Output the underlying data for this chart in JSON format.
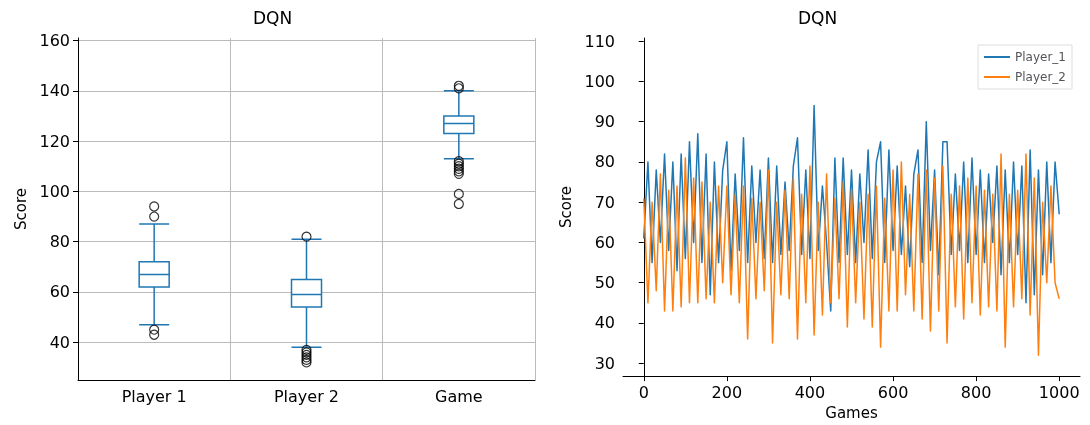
{
  "chart_data": [
    {
      "type": "box",
      "title": "DQN",
      "ylabel": "Score",
      "categories": [
        "Player 1",
        "Player 2",
        "Game"
      ],
      "color": "#1f77b4",
      "ylim": [
        25,
        161
      ],
      "yticks": [
        40,
        60,
        80,
        100,
        120,
        140,
        160
      ],
      "grid": true,
      "boxes": [
        {
          "low": 47,
          "q1": 62,
          "median": 67,
          "q3": 72,
          "high": 87,
          "outliers": [
            43,
            45,
            90,
            94
          ]
        },
        {
          "low": 38,
          "q1": 54,
          "median": 59,
          "q3": 65,
          "high": 81,
          "outliers": [
            32,
            33,
            34,
            35,
            36,
            37,
            82
          ]
        },
        {
          "low": 113,
          "q1": 123,
          "median": 127,
          "q3": 130,
          "high": 140,
          "outliers": [
            95,
            99,
            107,
            108,
            109,
            110,
            111,
            112,
            141,
            142
          ]
        }
      ]
    },
    {
      "type": "line",
      "title": "DQN",
      "xlabel": "Games",
      "ylabel": "Score",
      "xlim": [
        -50,
        1050
      ],
      "xticks": [
        0,
        200,
        400,
        600,
        800,
        1000
      ],
      "ylim": [
        26.8,
        110.8
      ],
      "yticks": [
        30,
        40,
        50,
        60,
        70,
        80,
        90,
        100,
        110
      ],
      "grid": false,
      "legend": "top right",
      "x": [
        0,
        10,
        20,
        30,
        40,
        50,
        60,
        70,
        80,
        90,
        100,
        110,
        120,
        130,
        140,
        150,
        160,
        170,
        180,
        190,
        200,
        210,
        220,
        230,
        240,
        250,
        260,
        270,
        280,
        290,
        300,
        310,
        320,
        330,
        340,
        350,
        360,
        370,
        380,
        390,
        400,
        410,
        420,
        430,
        440,
        450,
        460,
        470,
        480,
        490,
        500,
        510,
        520,
        530,
        540,
        550,
        560,
        570,
        580,
        590,
        600,
        610,
        620,
        630,
        640,
        650,
        660,
        670,
        680,
        690,
        700,
        710,
        720,
        730,
        740,
        750,
        760,
        770,
        780,
        790,
        800,
        810,
        820,
        830,
        840,
        850,
        860,
        870,
        880,
        890,
        900,
        910,
        920,
        930,
        940,
        950,
        960,
        970,
        980,
        990,
        1000
      ],
      "series": [
        {
          "name": "Player_1",
          "color": "#1f77b4",
          "values": [
            61,
            80,
            55,
            78,
            60,
            82,
            58,
            80,
            53,
            82,
            56,
            85,
            60,
            87,
            55,
            82,
            47,
            80,
            55,
            78,
            85,
            53,
            77,
            58,
            86,
            55,
            79,
            60,
            78,
            56,
            81,
            55,
            79,
            57,
            75,
            58,
            79,
            86,
            57,
            78,
            56,
            94,
            58,
            74,
            60,
            43,
            81,
            55,
            81,
            57,
            78,
            55,
            77,
            60,
            83,
            56,
            80,
            85,
            55,
            83,
            58,
            79,
            57,
            74,
            54,
            77,
            83,
            55,
            90,
            58,
            78,
            52,
            85,
            85,
            57,
            77,
            58,
            80,
            55,
            81,
            57,
            78,
            55,
            77,
            60,
            79,
            52,
            78,
            55,
            80,
            57,
            79,
            45,
            83,
            47,
            78,
            52,
            80,
            55,
            80,
            67
          ]
        },
        {
          "name": "Player_2",
          "color": "#ff7f0e",
          "values": [
            71,
            45,
            70,
            48,
            77,
            43,
            73,
            43,
            74,
            44,
            81,
            45,
            76,
            45,
            75,
            46,
            70,
            45,
            74,
            50,
            74,
            47,
            72,
            45,
            74,
            36,
            71,
            46,
            70,
            48,
            78,
            35,
            70,
            47,
            73,
            46,
            76,
            36,
            72,
            45,
            79,
            37,
            70,
            42,
            77,
            45,
            71,
            46,
            75,
            39,
            73,
            45,
            70,
            41,
            72,
            39,
            74,
            34,
            71,
            43,
            78,
            43,
            80,
            47,
            72,
            43,
            77,
            41,
            78,
            38,
            76,
            43,
            79,
            35,
            72,
            44,
            74,
            41,
            76,
            45,
            74,
            42,
            73,
            44,
            72,
            43,
            82,
            34,
            72,
            44,
            73,
            46,
            82,
            42,
            76,
            32,
            70,
            50,
            74,
            50,
            46
          ]
        }
      ]
    }
  ]
}
